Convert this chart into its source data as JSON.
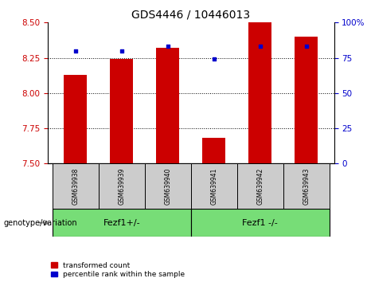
{
  "title": "GDS4446 / 10446013",
  "samples": [
    "GSM639938",
    "GSM639939",
    "GSM639940",
    "GSM639941",
    "GSM639942",
    "GSM639943"
  ],
  "transformed_counts": [
    8.13,
    8.24,
    8.32,
    7.68,
    8.5,
    8.4
  ],
  "percentile_ranks": [
    80,
    80,
    83,
    74,
    83,
    83
  ],
  "ylim_left": [
    7.5,
    8.5
  ],
  "ylim_right": [
    0,
    100
  ],
  "yticks_left": [
    7.5,
    7.75,
    8.0,
    8.25,
    8.5
  ],
  "yticks_right": [
    0,
    25,
    50,
    75,
    100
  ],
  "bar_color": "#cc0000",
  "dot_color": "#0000cc",
  "group1_label": "Fezf1+/-",
  "group2_label": "Fezf1 -/-",
  "group1_indices": [
    0,
    1,
    2
  ],
  "group2_indices": [
    3,
    4,
    5
  ],
  "group_bg_color": "#77dd77",
  "sample_box_color": "#cccccc",
  "tick_label_color_left": "#cc0000",
  "tick_label_color_right": "#0000cc",
  "legend_red_label": "transformed count",
  "legend_blue_label": "percentile rank within the sample",
  "genotype_label": "genotype/variation",
  "bar_width": 0.5
}
